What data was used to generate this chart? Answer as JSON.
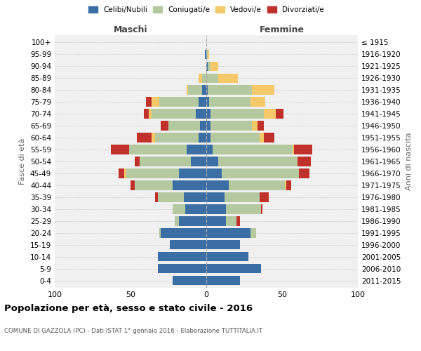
{
  "age_groups": [
    "0-4",
    "5-9",
    "10-14",
    "15-19",
    "20-24",
    "25-29",
    "30-34",
    "35-39",
    "40-44",
    "45-49",
    "50-54",
    "55-59",
    "60-64",
    "65-69",
    "70-74",
    "75-79",
    "80-84",
    "85-89",
    "90-94",
    "95-99",
    "100+"
  ],
  "birth_years": [
    "2011-2015",
    "2006-2010",
    "2001-2005",
    "1996-2000",
    "1991-1995",
    "1986-1990",
    "1981-1985",
    "1976-1980",
    "1971-1975",
    "1966-1970",
    "1961-1965",
    "1956-1960",
    "1951-1955",
    "1946-1950",
    "1941-1945",
    "1936-1940",
    "1931-1935",
    "1926-1930",
    "1921-1925",
    "1916-1920",
    "≤ 1915"
  ],
  "males": {
    "celibe": [
      22,
      32,
      32,
      24,
      30,
      18,
      14,
      15,
      22,
      18,
      10,
      13,
      5,
      4,
      7,
      5,
      3,
      0,
      0,
      1,
      0
    ],
    "coniugato": [
      0,
      0,
      0,
      0,
      1,
      3,
      8,
      17,
      25,
      35,
      34,
      38,
      29,
      21,
      29,
      26,
      9,
      3,
      0,
      0,
      0
    ],
    "vedovo": [
      0,
      0,
      0,
      0,
      0,
      0,
      0,
      0,
      0,
      1,
      0,
      0,
      2,
      0,
      2,
      5,
      1,
      2,
      0,
      0,
      0
    ],
    "divorziato": [
      0,
      0,
      0,
      0,
      0,
      0,
      0,
      2,
      3,
      4,
      3,
      12,
      10,
      5,
      3,
      4,
      0,
      0,
      0,
      0,
      0
    ]
  },
  "females": {
    "nubile": [
      22,
      36,
      28,
      22,
      29,
      13,
      13,
      12,
      15,
      10,
      8,
      4,
      3,
      3,
      3,
      2,
      1,
      0,
      1,
      0,
      0
    ],
    "coniugata": [
      0,
      0,
      0,
      0,
      4,
      7,
      23,
      23,
      37,
      51,
      52,
      53,
      32,
      27,
      35,
      27,
      29,
      8,
      2,
      1,
      0
    ],
    "vedova": [
      0,
      0,
      0,
      0,
      0,
      0,
      0,
      0,
      1,
      0,
      0,
      1,
      3,
      4,
      8,
      10,
      15,
      13,
      5,
      1,
      0
    ],
    "divorziata": [
      0,
      0,
      0,
      0,
      0,
      2,
      1,
      6,
      3,
      7,
      9,
      12,
      7,
      4,
      5,
      0,
      0,
      0,
      0,
      0,
      0
    ]
  },
  "colors": {
    "celibe": "#3b6ea5",
    "coniugato": "#b5c9a1",
    "vedovo": "#f5c96a",
    "divorziato": "#c0312b"
  },
  "title": "Popolazione per età, sesso e stato civile - 2016",
  "subtitle": "COMUNE DI GAZZOLA (PC) - Dati ISTAT 1° gennaio 2016 - Elaborazione TUTTITALIA.IT",
  "ylabel_left": "Fasce di età",
  "ylabel_right": "Anni di nascita",
  "xlabel_left": "Maschi",
  "xlabel_right": "Femmine",
  "xlim": 100,
  "legend_labels": [
    "Celibi/Nubili",
    "Coniugati/e",
    "Vedovi/e",
    "Divorziati/e"
  ],
  "bg_color": "#f0f0f0"
}
